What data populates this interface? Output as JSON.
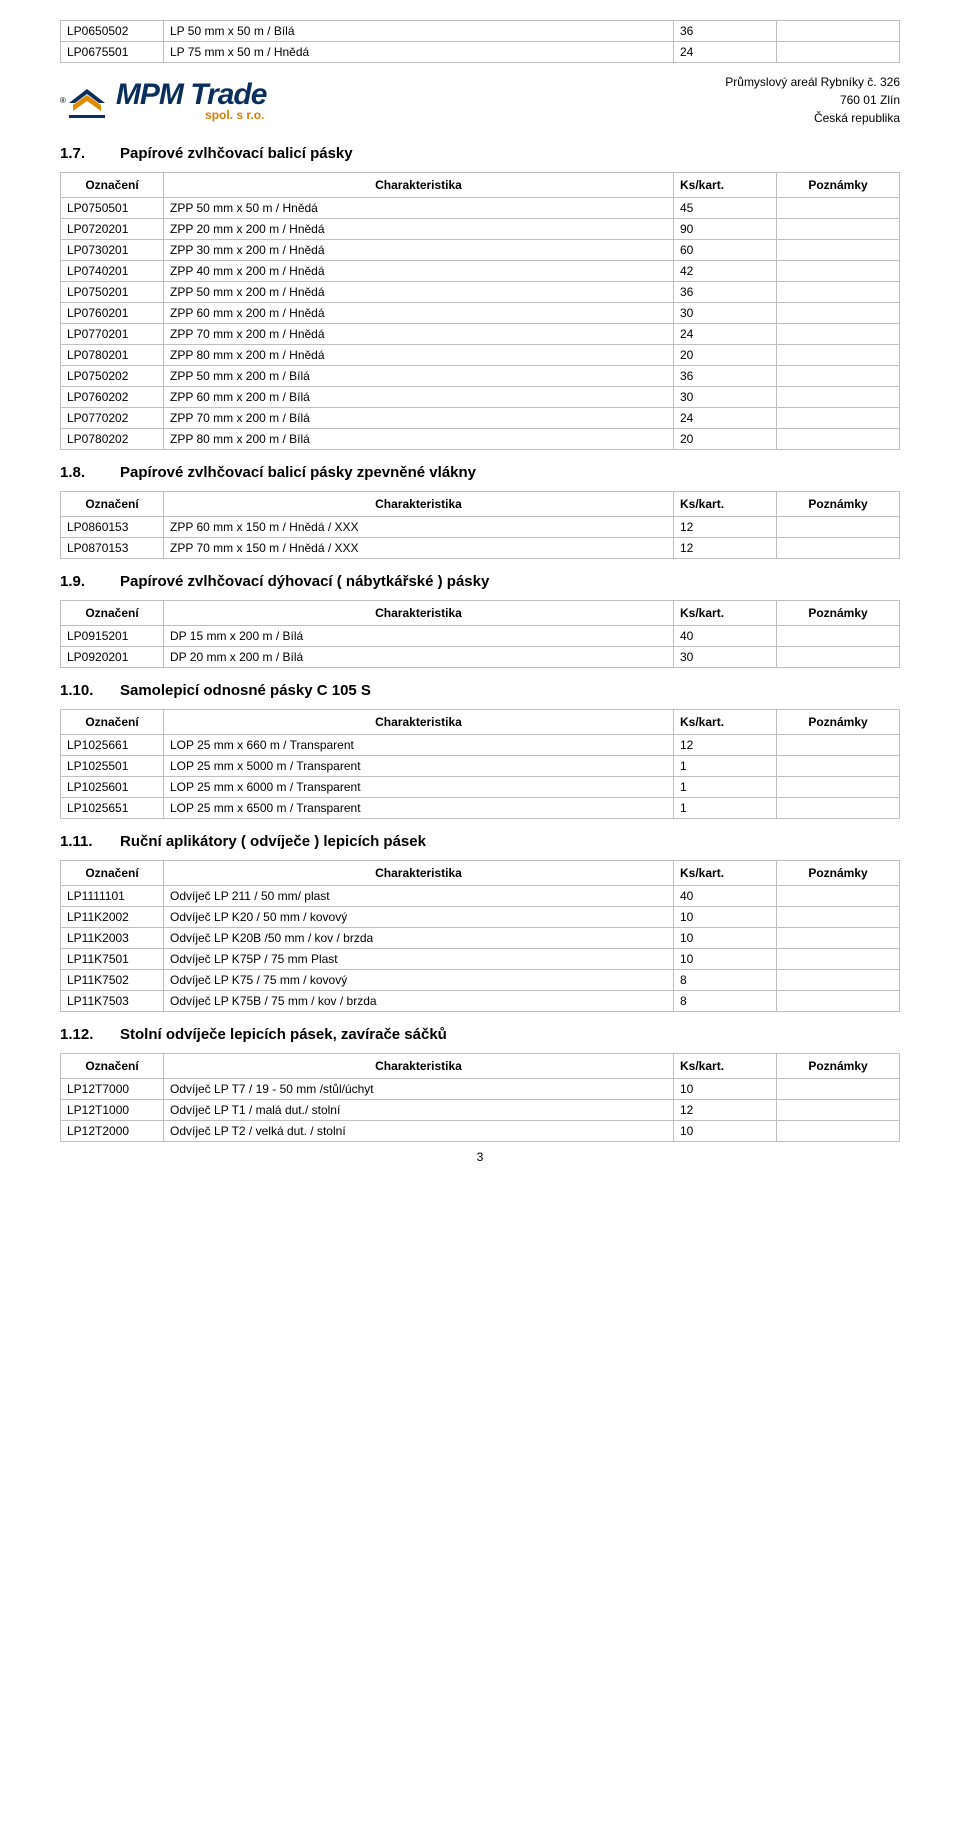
{
  "top_rows": [
    {
      "code": "LP0650502",
      "desc": "LP 50 mm x 50 m / Bílá",
      "qty": "36",
      "note": ""
    },
    {
      "code": "LP0675501",
      "desc": "LP 75 mm x 50 m / Hnědá",
      "qty": "24",
      "note": ""
    }
  ],
  "company": {
    "name": "MPM Trade",
    "sub": "spol. s r.o.",
    "addr1": "Průmyslový areál Rybníky č. 326",
    "addr2": "760 01 Zlín",
    "addr3": "Česká republika"
  },
  "headers": {
    "code_center": "Označení",
    "desc": "Charakteristika",
    "qty": "Ks/kart.",
    "note": "Poznámky"
  },
  "sections": [
    {
      "num": "1.7.",
      "title": "Papírové zvlhčovací balicí pásky",
      "rows": [
        {
          "code": "LP0750501",
          "desc": "ZPP 50 mm x 50 m  / Hnědá",
          "qty": "45",
          "note": ""
        },
        {
          "code": "LP0720201",
          "desc": "ZPP 20 mm x 200 m / Hnědá",
          "qty": "90",
          "note": ""
        },
        {
          "code": "LP0730201",
          "desc": "ZPP 30 mm x 200 m / Hnědá",
          "qty": "60",
          "note": ""
        },
        {
          "code": "LP0740201",
          "desc": "ZPP 40 mm x 200 m / Hnědá",
          "qty": "42",
          "note": ""
        },
        {
          "code": "LP0750201",
          "desc": "ZPP 50 mm x 200 m / Hnědá",
          "qty": "36",
          "note": ""
        },
        {
          "code": "LP0760201",
          "desc": "ZPP 60 mm x 200 m / Hnědá",
          "qty": "30",
          "note": ""
        },
        {
          "code": "LP0770201",
          "desc": "ZPP 70 mm x 200 m / Hnědá",
          "qty": "24",
          "note": ""
        },
        {
          "code": "LP0780201",
          "desc": "ZPP 80 mm x 200 m / Hnědá",
          "qty": "20",
          "note": ""
        },
        {
          "code": "LP0750202",
          "desc": "ZPP 50 mm x 200 m / Bílá",
          "qty": "36",
          "note": ""
        },
        {
          "code": "LP0760202",
          "desc": "ZPP 60 mm x 200 m / Bílá",
          "qty": "30",
          "note": ""
        },
        {
          "code": "LP0770202",
          "desc": "ZPP 70 mm x 200 m / Bílá",
          "qty": "24",
          "note": ""
        },
        {
          "code": "LP0780202",
          "desc": "ZPP 80 mm x 200 m / Bílá",
          "qty": "20",
          "note": ""
        }
      ]
    },
    {
      "num": "1.8.",
      "title": "Papírové zvlhčovací balicí pásky zpevněné vlákny",
      "rows": [
        {
          "code": "LP0860153",
          "desc": "ZPP 60 mm x 150 m / Hnědá / XXX",
          "qty": "12",
          "note": ""
        },
        {
          "code": "LP0870153",
          "desc": "ZPP 70 mm x 150 m / Hnědá / XXX",
          "qty": "12",
          "note": ""
        }
      ]
    },
    {
      "num": "1.9.",
      "title": "Papírové zvlhčovací dýhovací ( nábytkářské ) pásky",
      "rows": [
        {
          "code": "LP0915201",
          "desc": "DP 15 mm x 200 m  / Bílá",
          "qty": "40",
          "note": ""
        },
        {
          "code": "LP0920201",
          "desc": "DP 20 mm x 200 m / Bílá",
          "qty": "30",
          "note": ""
        }
      ]
    },
    {
      "num": "1.10.",
      "title": "Samolepicí odnosné pásky C 105 S",
      "rows": [
        {
          "code": "LP1025661",
          "desc": "LOP 25 mm x 660 m  / Transparent",
          "qty": "12",
          "note": ""
        },
        {
          "code": "LP1025501",
          "desc": "LOP 25 mm x 5000 m / Transparent",
          "qty": "1",
          "note": ""
        },
        {
          "code": "LP1025601",
          "desc": "LOP 25 mm x 6000 m / Transparent",
          "qty": "1",
          "note": ""
        },
        {
          "code": "LP1025651",
          "desc": "LOP 25 mm x 6500 m / Transparent",
          "qty": "1",
          "note": ""
        }
      ]
    },
    {
      "num": "1.11.",
      "title": "Ruční aplikátory ( odvíječe ) lepicích pásek",
      "rows": [
        {
          "code": "LP1111101",
          "desc": "Odvíječ LP 211 / 50 mm/ plast",
          "qty": "40",
          "note": ""
        },
        {
          "code": "LP11K2002",
          "desc": "Odvíječ LP K20 / 50 mm / kovový",
          "qty": "10",
          "note": ""
        },
        {
          "code": "LP11K2003",
          "desc": "Odvíječ LP K20B /50 mm / kov / brzda",
          "qty": "10",
          "note": ""
        },
        {
          "code": "LP11K7501",
          "desc": "Odvíječ LP K75P / 75 mm Plast",
          "qty": "10",
          "note": ""
        },
        {
          "code": "LP11K7502",
          "desc": "Odvíječ LP K75 / 75 mm / kovový",
          "qty": "8",
          "note": ""
        },
        {
          "code": "LP11K7503",
          "desc": "Odvíječ LP K75B / 75 mm / kov / brzda",
          "qty": "8",
          "note": ""
        }
      ]
    },
    {
      "num": "1.12.",
      "title": "Stolní odvíječe lepicích pásek, zavírače sáčků",
      "rows": [
        {
          "code": "LP12T7000",
          "desc": "Odvíječ LP T7 / 19 - 50 mm /stůl/úchyt",
          "qty": "10",
          "note": ""
        },
        {
          "code": "LP12T1000",
          "desc": "Odvíječ LP T1 / malá dut./ stolní",
          "qty": "12",
          "note": ""
        },
        {
          "code": "LP12T2000",
          "desc": "Odvíječ LP T2 / velká dut. / stolní",
          "qty": "10",
          "note": ""
        }
      ]
    }
  ],
  "page_number": "3"
}
